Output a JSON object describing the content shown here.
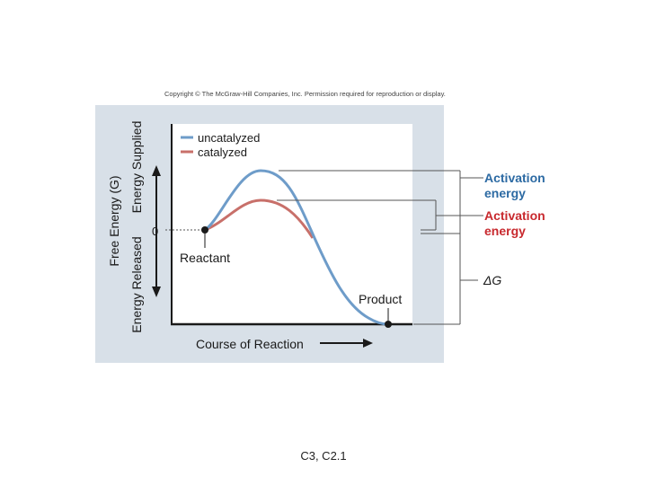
{
  "copyright": "Copyright © The McGraw-Hill Companies, Inc. Permission required for reproduction or display.",
  "caption": "C3, C2.1",
  "colors": {
    "panel": "#d8e0e8",
    "uncatalyzed": "#6e9cc9",
    "catalyzed": "#c8706a",
    "activation_uncat_label": "#2c6aa3",
    "activation_cat_label": "#c8292e",
    "axis": "#1a1a1a"
  },
  "diagram": {
    "y_axis_title": "Free Energy (G)",
    "energy_supplied": "Energy Supplied",
    "energy_released": "Energy Released",
    "zero_label": "0",
    "x_axis_title": "Course of Reaction",
    "reactant_label": "Reactant",
    "product_label": "Product",
    "legend": {
      "uncatalyzed": "uncatalyzed",
      "catalyzed": "catalyzed"
    },
    "activation_uncatalyzed": [
      "Activation",
      "energy"
    ],
    "activation_catalyzed": [
      "Activation",
      "energy"
    ],
    "delta_g": "ΔG"
  }
}
